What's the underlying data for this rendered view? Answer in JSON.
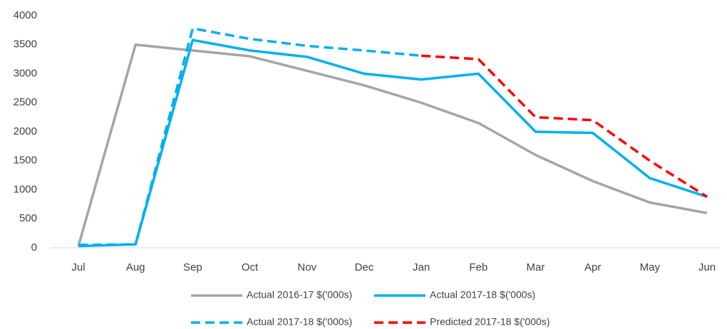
{
  "chart_data": {
    "type": "line",
    "categories": [
      "Jul",
      "Aug",
      "Sep",
      "Oct",
      "Nov",
      "Dec",
      "Jan",
      "Feb",
      "Mar",
      "Apr",
      "May",
      "Jun"
    ],
    "series": [
      {
        "name": "Actual 2016-17 $('000s)",
        "color": "#a5a5a5",
        "dash": false,
        "values": [
          30,
          3500,
          3400,
          3300,
          3050,
          2800,
          2500,
          2150,
          1600,
          1150,
          780,
          600
        ]
      },
      {
        "name": "Actual 2017-18 $('000s)",
        "color": "#00b0f0",
        "dash": false,
        "values": [
          30,
          60,
          3580,
          3400,
          3290,
          3000,
          2900,
          3000,
          2000,
          1980,
          1200,
          880
        ]
      },
      {
        "name": "Actual 2017-18 $('000s)",
        "color": "#00b0f0",
        "dash": true,
        "values": [
          50,
          60,
          3780,
          3600,
          3480,
          3400,
          3310,
          null,
          null,
          null,
          null,
          null
        ]
      },
      {
        "name": "Predicted 2017-18 $('000s)",
        "color": "#ff0000",
        "dash": true,
        "values": [
          null,
          null,
          null,
          null,
          null,
          null,
          3310,
          3250,
          2250,
          2200,
          1500,
          880
        ]
      }
    ],
    "ylim": [
      0,
      4000
    ],
    "yticks": [
      0,
      500,
      1000,
      1500,
      2000,
      2500,
      3000,
      3500,
      4000
    ],
    "grid": false,
    "legend": "bottom"
  }
}
